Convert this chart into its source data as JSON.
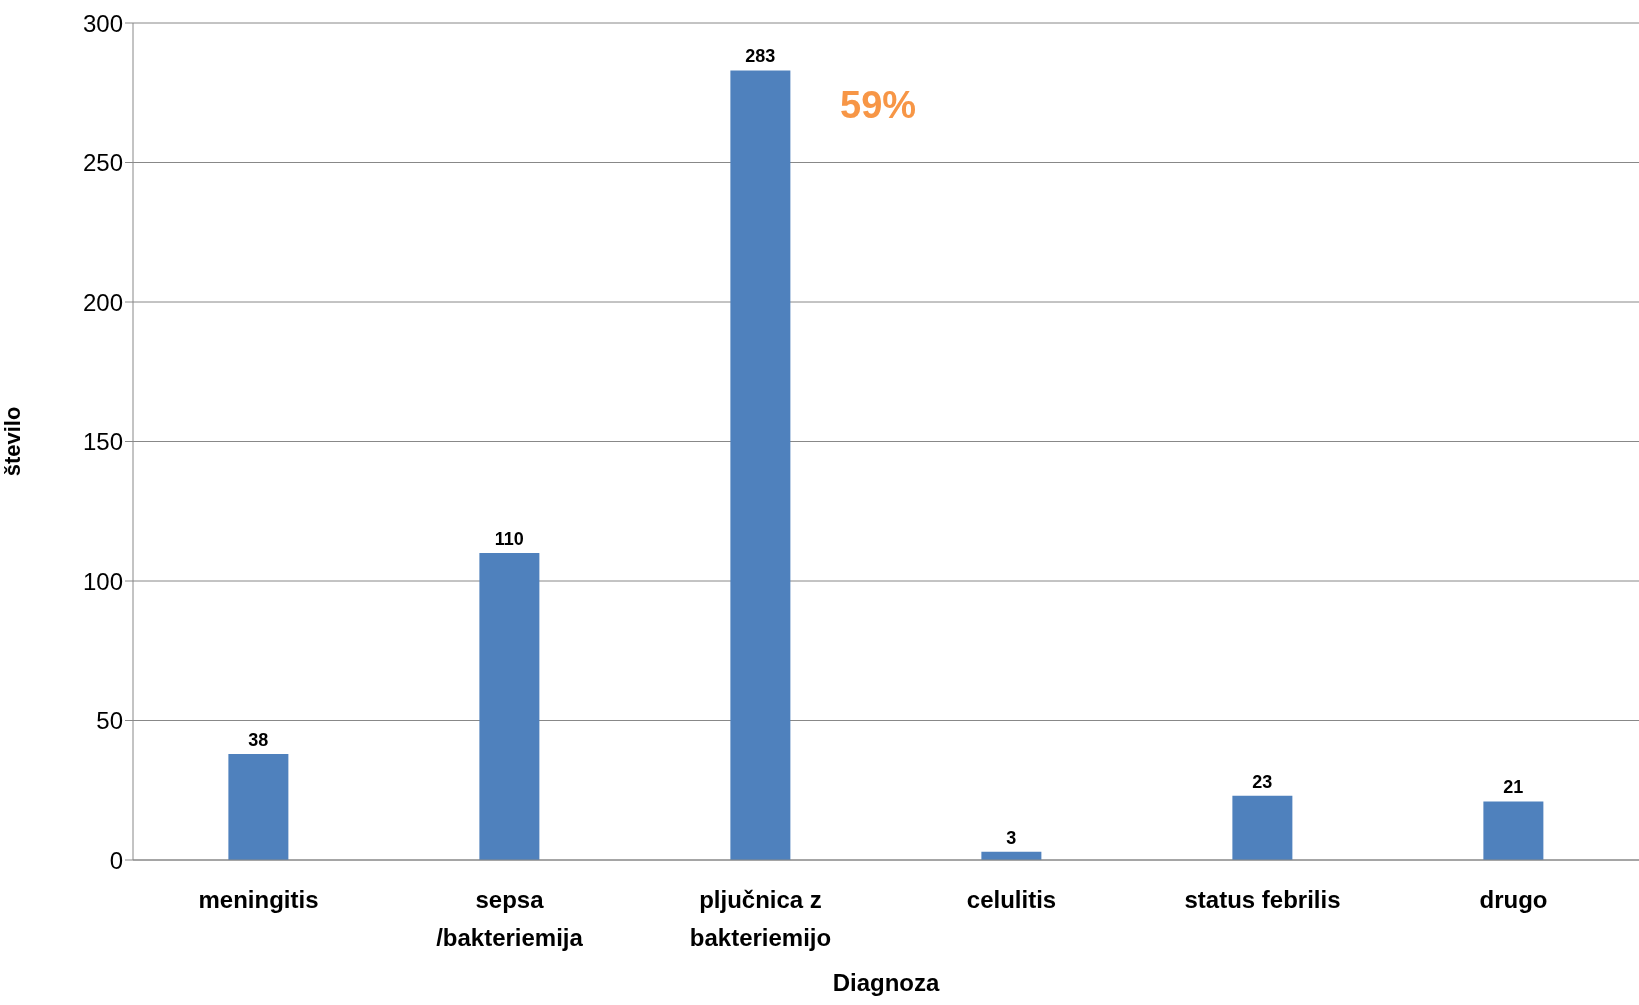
{
  "chart_data": {
    "type": "bar",
    "xlabel": "Diagnoza",
    "ylabel": "število",
    "categories": [
      "meningitis",
      "sepsa /bakteriemija",
      "pljučnica z bakteriemijo",
      "celulitis",
      "status febrilis",
      "drugo"
    ],
    "values": [
      38,
      110,
      283,
      3,
      23,
      21
    ],
    "color": "#4f81bd",
    "ylim": [
      0,
      300
    ],
    "yticks": [
      0,
      50,
      100,
      150,
      200,
      250,
      300
    ],
    "grid": "y",
    "data_labels": true,
    "annotations": [
      "59%"
    ]
  }
}
